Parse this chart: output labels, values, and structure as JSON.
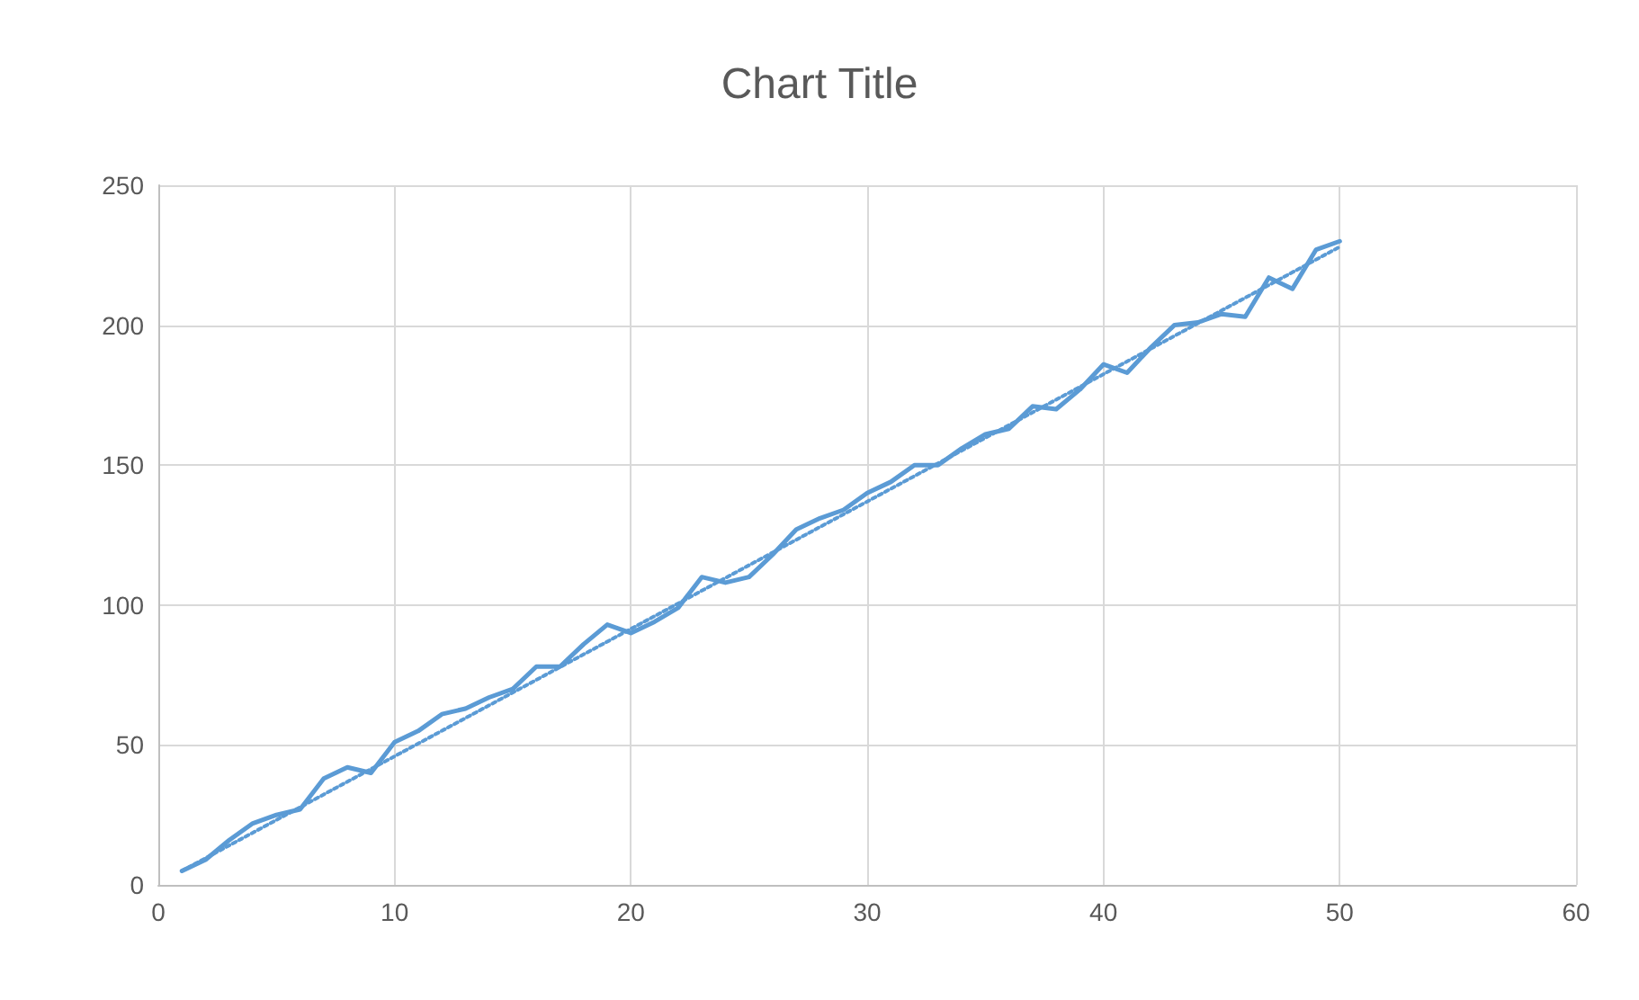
{
  "chart_data": {
    "type": "line",
    "title": "Chart Title",
    "x": [
      1,
      2,
      3,
      4,
      5,
      6,
      7,
      8,
      9,
      10,
      11,
      12,
      13,
      14,
      15,
      16,
      17,
      18,
      19,
      20,
      21,
      22,
      23,
      24,
      25,
      26,
      27,
      28,
      29,
      30,
      31,
      32,
      33,
      34,
      35,
      36,
      37,
      38,
      39,
      40,
      41,
      42,
      43,
      44,
      45,
      46,
      47,
      48,
      49,
      50
    ],
    "series": [
      {
        "color": "#5b9bd5",
        "line_style": "solid",
        "values": [
          5,
          9,
          16,
          22,
          25,
          27,
          38,
          42,
          40,
          51,
          55,
          61,
          63,
          67,
          70,
          78,
          78,
          86,
          93,
          90,
          94,
          99,
          110,
          108,
          110,
          118,
          127,
          131,
          134,
          140,
          144,
          150,
          150,
          156,
          161,
          163,
          171,
          170,
          177,
          186,
          183,
          192,
          200,
          201,
          204,
          203,
          217,
          213,
          227,
          230
        ]
      },
      {
        "color": "#5b9bd5",
        "line_style": "dotted",
        "x": [
          1,
          50
        ],
        "values": [
          5,
          228
        ]
      }
    ],
    "xlim": [
      0,
      60
    ],
    "xticks": [
      0,
      10,
      20,
      30,
      40,
      50,
      60
    ],
    "ylim": [
      0,
      250
    ],
    "yticks": [
      0,
      50,
      100,
      150,
      200,
      250
    ],
    "grid": true,
    "marker": "none"
  }
}
